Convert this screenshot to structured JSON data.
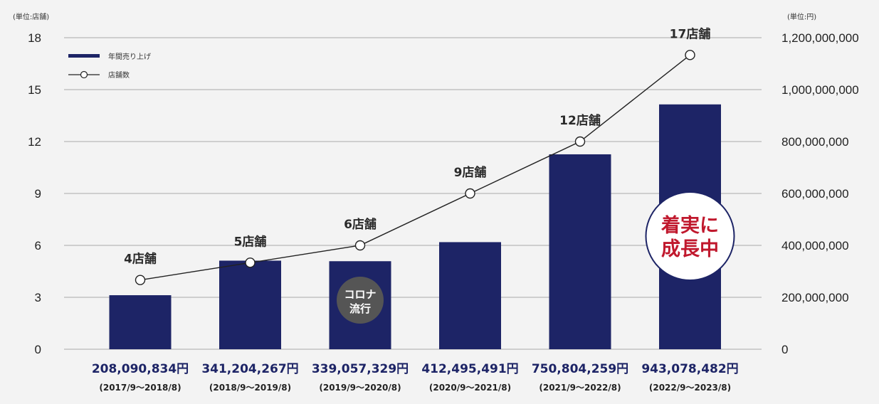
{
  "chart_data": {
    "type": "bar",
    "categories": [
      "(2017/9～2018/8)",
      "(2018/9～2019/8)",
      "(2019/9～2020/8)",
      "(2020/9～2021/8)",
      "(2021/9～2022/8)",
      "(2022/9～2023/8)"
    ],
    "series": [
      {
        "name": "年間売り上げ",
        "type": "bar",
        "axis": "right",
        "values": [
          208090834,
          341204267,
          339057329,
          412495491,
          750804259,
          943078482
        ],
        "labels": [
          "208,090,834円",
          "341,204,267円",
          "339,057,329円",
          "412,495,491円",
          "750,804,259円",
          "943,078,482円"
        ]
      },
      {
        "name": "店舗数",
        "type": "line",
        "axis": "left",
        "values": [
          4,
          5,
          6,
          9,
          12,
          17
        ],
        "labels": [
          "4店舗",
          "5店舗",
          "6店舗",
          "9店舗",
          "12店舗",
          "17店舗"
        ]
      }
    ],
    "y_left": {
      "unit": "(単位:店舗)",
      "ylim": [
        0,
        18
      ],
      "ticks": [
        "0",
        "3",
        "6",
        "9",
        "12",
        "15",
        "18"
      ]
    },
    "y_right": {
      "unit": "(単位:円)",
      "ylim": [
        0,
        1200000000
      ],
      "ticks": [
        "0",
        "200,000,000",
        "400,000,000",
        "600,000,000",
        "800,000,000",
        "1,000,000,000",
        "1,200,000,000"
      ]
    },
    "legend_position": "top-left",
    "grid": true,
    "annotations": {
      "badge": [
        "コロナ",
        "流行"
      ],
      "badge_category": 2,
      "growth": [
        "着実に",
        "成長中"
      ],
      "growth_category": 5
    }
  },
  "colors": {
    "bar": "#1d2466",
    "line": "#222222",
    "badge": "#555555",
    "growth_text": "#c0182d",
    "grid": "#aaaaaa"
  }
}
